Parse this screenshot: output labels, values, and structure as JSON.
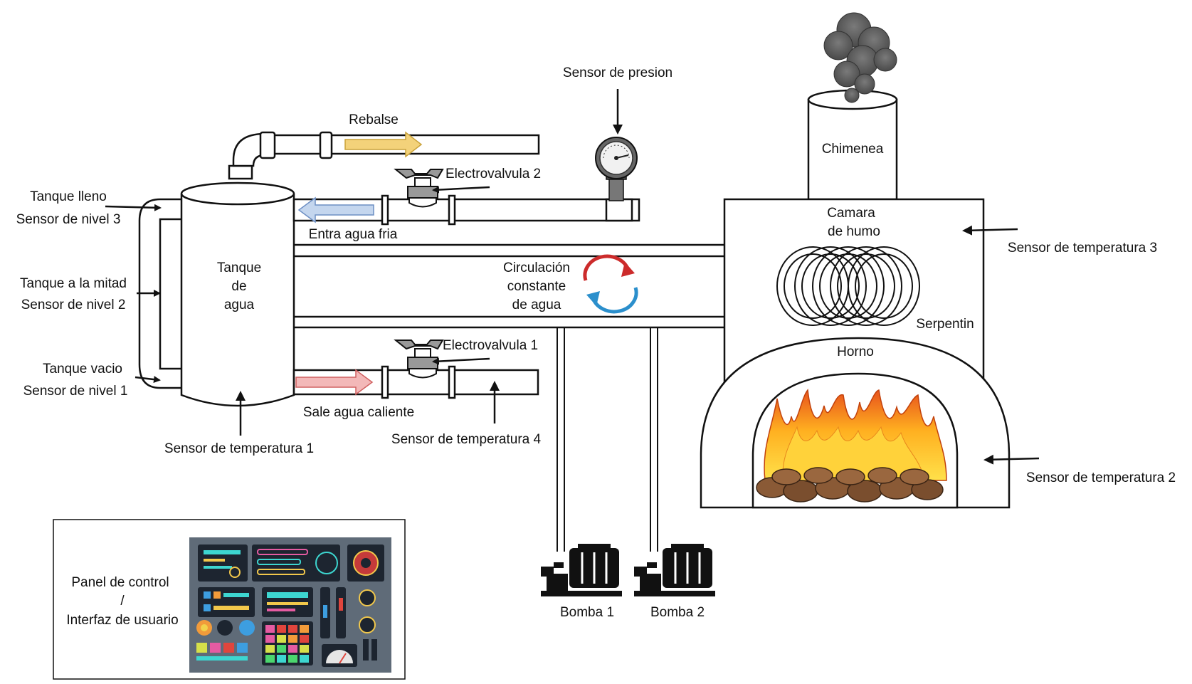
{
  "labels": {
    "sensor_presion": "Sensor de presion",
    "rebalse": "Rebalse",
    "electrovalvula_2": "Electrovalvula 2",
    "entra_agua_fria": "Entra agua fria",
    "tanque_lleno": "Tanque lleno",
    "sensor_nivel_3": "Sensor de nivel 3",
    "tanque_mitad": "Tanque a la mitad",
    "sensor_nivel_2": "Sensor de nivel 2",
    "tanque_vacio": "Tanque vacio",
    "sensor_nivel_1": "Sensor de nivel 1",
    "tanque_line1": "Tanque",
    "tanque_line2": "de",
    "tanque_line3": "agua",
    "circulacion_line1": "Circulación",
    "circulacion_line2": "constante",
    "circulacion_line3": "de agua",
    "electrovalvula_1": "Electrovalvula 1",
    "sale_agua_caliente": "Sale agua caliente",
    "sensor_temp_1": "Sensor de temperatura 1",
    "sensor_temp_4": "Sensor de temperatura 4",
    "chimenea": "Chimenea",
    "camara_line1": "Camara",
    "camara_line2": "de humo",
    "sensor_temp_3": "Sensor de temperatura 3",
    "serpentin": "Serpentin",
    "horno": "Horno",
    "sensor_temp_2": "Sensor de temperatura 2",
    "bomba_1": "Bomba 1",
    "bomba_2": "Bomba 2",
    "panel_line1": "Panel de control",
    "panel_line2": "/",
    "panel_line3": "Interfaz de usuario"
  },
  "colors": {
    "outline": "#111111",
    "rebalse_arrow": "#f3d27a",
    "cold_arrow": "#8eaedb",
    "hot_arrow": "#e88a8a",
    "cycle_red": "#cc2b2b",
    "cycle_blue": "#2b8fcc",
    "smoke": "#5e5e5e",
    "fire_orange": "#f08a1c",
    "fire_yellow": "#ffd23a",
    "wood": "#8a5a36",
    "panel_bg": "#5f6b78"
  }
}
